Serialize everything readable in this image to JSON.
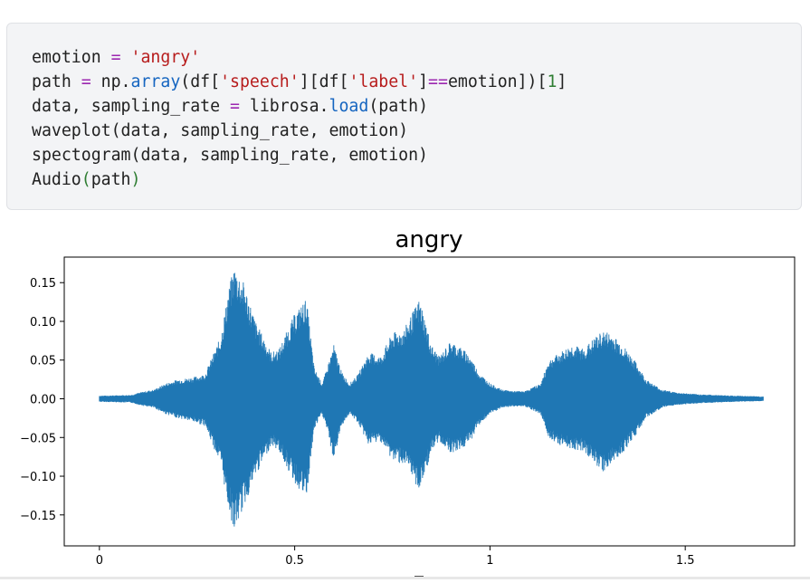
{
  "code_cell": {
    "lines": [
      [
        {
          "t": "emotion ",
          "c": ""
        },
        {
          "t": "=",
          "c": "op"
        },
        {
          "t": " ",
          "c": ""
        },
        {
          "t": "'angry'",
          "c": "str"
        }
      ],
      [
        {
          "t": "path ",
          "c": ""
        },
        {
          "t": "=",
          "c": "op"
        },
        {
          "t": " np.",
          "c": ""
        },
        {
          "t": "array",
          "c": "fn"
        },
        {
          "t": "(df[",
          "c": ""
        },
        {
          "t": "'speech'",
          "c": "str"
        },
        {
          "t": "][df[",
          "c": ""
        },
        {
          "t": "'label'",
          "c": "str"
        },
        {
          "t": "]",
          "c": ""
        },
        {
          "t": "==",
          "c": "op"
        },
        {
          "t": "emotion])[",
          "c": ""
        },
        {
          "t": "1",
          "c": "num"
        },
        {
          "t": "]",
          "c": ""
        }
      ],
      [
        {
          "t": "data, sampling_rate ",
          "c": ""
        },
        {
          "t": "=",
          "c": "op"
        },
        {
          "t": " librosa.",
          "c": ""
        },
        {
          "t": "load",
          "c": "fn"
        },
        {
          "t": "(path)",
          "c": ""
        }
      ],
      [
        {
          "t": "waveplot(data, sampling_rate, emotion)",
          "c": ""
        }
      ],
      [
        {
          "t": "spectogram(data, sampling_rate, emotion)",
          "c": ""
        }
      ],
      [
        {
          "t": "Audio",
          "c": ""
        },
        {
          "t": "(",
          "c": "paren-green"
        },
        {
          "t": "path",
          "c": ""
        },
        {
          "t": ")",
          "c": "paren-green"
        }
      ]
    ]
  },
  "chart_data": {
    "type": "line",
    "title": "angry",
    "xlabel": "",
    "ylabel": "",
    "xlim": [
      -0.09,
      1.78
    ],
    "ylim": [
      -0.19,
      0.183
    ],
    "xticks": [
      0,
      0.5,
      1,
      1.5
    ],
    "xtick_labels": [
      "0",
      "0.5",
      "1",
      "1.5"
    ],
    "yticks": [
      0.15,
      0.1,
      0.05,
      0.0,
      -0.05,
      -0.1,
      -0.15
    ],
    "ytick_labels": [
      "0.15",
      "0.10",
      "0.05",
      "0.00",
      "−0.05",
      "−0.10",
      "−0.15"
    ],
    "grid": false,
    "color": "#1f77b4",
    "duration": 1.7,
    "envelope": {
      "t": [
        0.0,
        0.08,
        0.11,
        0.14,
        0.17,
        0.2,
        0.24,
        0.27,
        0.31,
        0.33,
        0.345,
        0.37,
        0.4,
        0.44,
        0.46,
        0.5,
        0.53,
        0.55,
        0.57,
        0.58,
        0.6,
        0.62,
        0.64,
        0.66,
        0.69,
        0.72,
        0.75,
        0.78,
        0.82,
        0.85,
        0.87,
        0.9,
        0.93,
        0.95,
        0.97,
        1.0,
        1.03,
        1.06,
        1.09,
        1.13,
        1.15,
        1.18,
        1.21,
        1.24,
        1.27,
        1.29,
        1.31,
        1.34,
        1.37,
        1.4,
        1.44,
        1.48,
        1.53,
        1.58,
        1.63,
        1.7
      ],
      "up": [
        0.004,
        0.005,
        0.009,
        0.012,
        0.02,
        0.025,
        0.028,
        0.032,
        0.08,
        0.14,
        0.172,
        0.15,
        0.1,
        0.06,
        0.065,
        0.11,
        0.13,
        0.04,
        0.02,
        0.035,
        0.07,
        0.035,
        0.02,
        0.03,
        0.06,
        0.055,
        0.085,
        0.09,
        0.13,
        0.07,
        0.055,
        0.075,
        0.065,
        0.055,
        0.035,
        0.02,
        0.012,
        0.01,
        0.01,
        0.02,
        0.05,
        0.06,
        0.07,
        0.065,
        0.08,
        0.088,
        0.085,
        0.07,
        0.05,
        0.025,
        0.012,
        0.008,
        0.006,
        0.005,
        0.004,
        0.003
      ],
      "down": [
        0.004,
        0.005,
        0.009,
        0.012,
        0.02,
        0.025,
        0.03,
        0.035,
        0.085,
        0.14,
        0.172,
        0.14,
        0.1,
        0.06,
        0.068,
        0.11,
        0.13,
        0.04,
        0.02,
        0.035,
        0.08,
        0.035,
        0.02,
        0.03,
        0.06,
        0.055,
        0.08,
        0.085,
        0.12,
        0.07,
        0.055,
        0.07,
        0.065,
        0.055,
        0.035,
        0.02,
        0.012,
        0.01,
        0.01,
        0.02,
        0.05,
        0.06,
        0.065,
        0.068,
        0.085,
        0.095,
        0.085,
        0.07,
        0.05,
        0.025,
        0.012,
        0.008,
        0.006,
        0.005,
        0.004,
        0.003
      ]
    }
  }
}
